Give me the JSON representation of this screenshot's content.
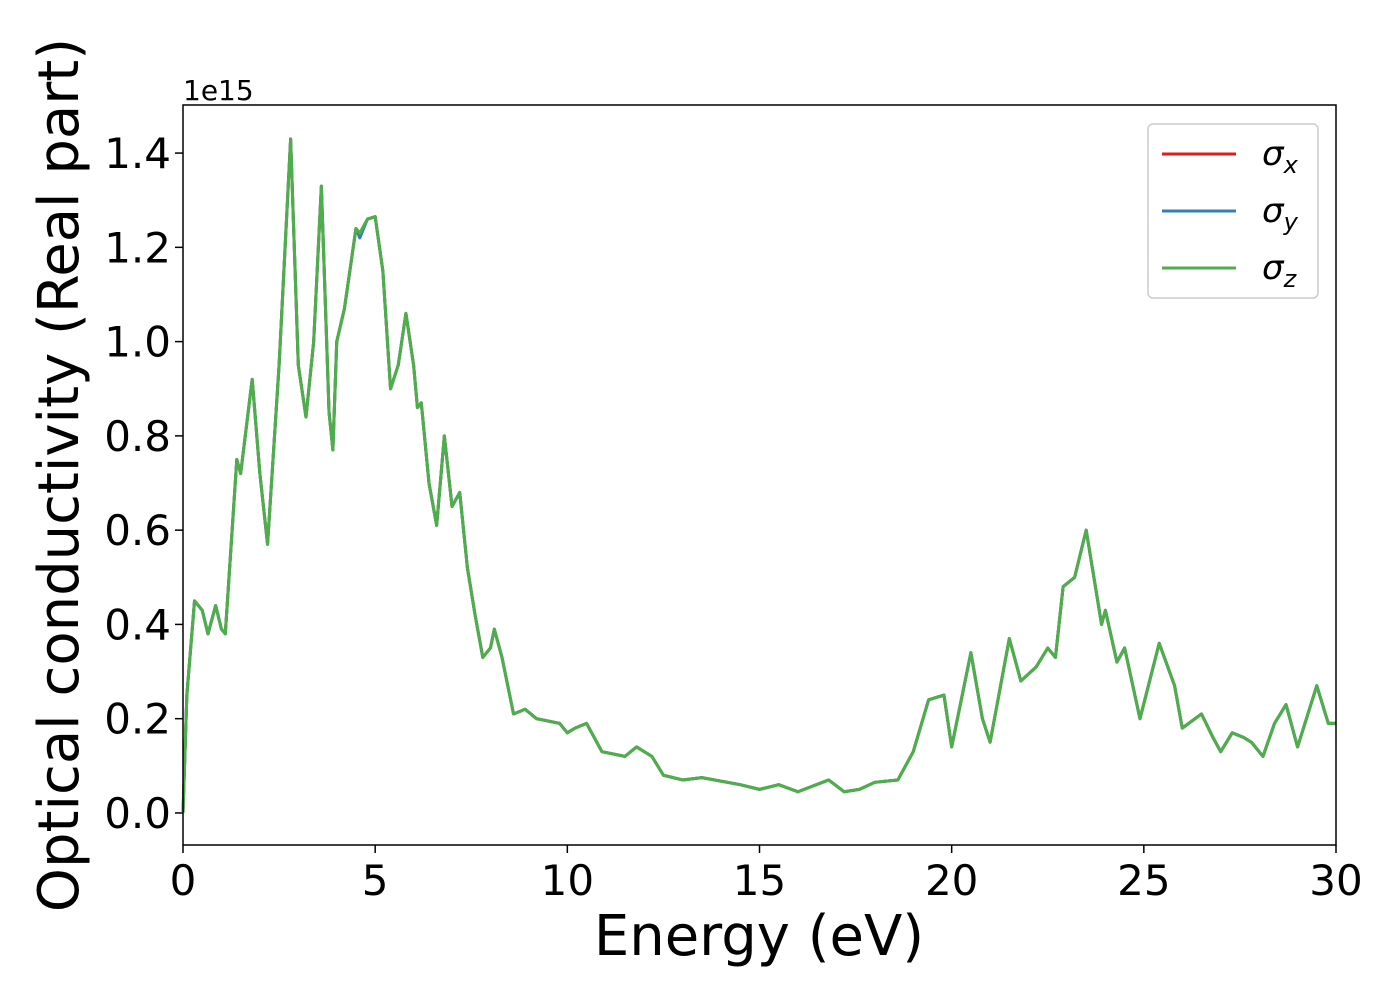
{
  "chart_data": {
    "type": "line",
    "xlabel": "Energy (eV)",
    "ylabel": "Optical conductivity (Real part)",
    "offset_label": "1e15",
    "xlim": [
      0,
      30
    ],
    "xticks": [
      0,
      5,
      10,
      15,
      20,
      25,
      30
    ],
    "ylim": [
      -0.068,
      1.502
    ],
    "yticks": [
      {
        "value": 0,
        "label": "0.0"
      },
      {
        "value": 0.2,
        "label": "0.2"
      },
      {
        "value": 0.4,
        "label": "0.4"
      },
      {
        "value": 0.6,
        "label": "0.6"
      },
      {
        "value": 0.8,
        "label": "0.8"
      },
      {
        "value": 1.0,
        "label": "1.0"
      },
      {
        "value": 1.2,
        "label": "1.2"
      },
      {
        "value": 1.4,
        "label": "1.4"
      }
    ],
    "legend": "upper right",
    "x": [
      0,
      0.1,
      0.3,
      0.5,
      0.65,
      0.85,
      1.0,
      1.1,
      1.4,
      1.5,
      1.8,
      2.0,
      2.2,
      2.5,
      2.8,
      3.0,
      3.2,
      3.4,
      3.6,
      3.8,
      3.9,
      4.0,
      4.2,
      4.5,
      4.6,
      4.8,
      5.0,
      5.2,
      5.4,
      5.6,
      5.8,
      6.0,
      6.1,
      6.2,
      6.4,
      6.6,
      6.8,
      7.0,
      7.2,
      7.4,
      7.6,
      7.8,
      8.0,
      8.1,
      8.3,
      8.6,
      8.9,
      9.2,
      9.8,
      10.0,
      10.2,
      10.5,
      10.9,
      11.5,
      11.8,
      12.2,
      12.5,
      13.0,
      13.5,
      14.5,
      15.0,
      15.5,
      16.0,
      16.8,
      17.2,
      17.6,
      18.0,
      18.6,
      19.0,
      19.4,
      19.8,
      20.0,
      20.5,
      20.8,
      21.0,
      21.5,
      21.8,
      22.2,
      22.5,
      22.7,
      22.9,
      23.2,
      23.5,
      23.9,
      24.0,
      24.3,
      24.5,
      24.9,
      25.4,
      25.8,
      26.0,
      26.5,
      26.8,
      27.0,
      27.3,
      27.6,
      27.8,
      28.1,
      28.4,
      28.7,
      29.0,
      29.5,
      29.8,
      30.0
    ],
    "series": [
      {
        "name": "σx",
        "color": "#e41a1c",
        "values": [
          0,
          0.25,
          0.45,
          0.43,
          0.38,
          0.44,
          0.39,
          0.38,
          0.75,
          0.72,
          0.92,
          0.72,
          0.57,
          0.95,
          1.43,
          0.95,
          0.84,
          1.0,
          1.33,
          0.85,
          0.77,
          1.0,
          1.07,
          1.24,
          1.23,
          1.26,
          1.265,
          1.15,
          0.9,
          0.95,
          1.06,
          0.95,
          0.86,
          0.87,
          0.7,
          0.61,
          0.8,
          0.65,
          0.68,
          0.52,
          0.42,
          0.33,
          0.35,
          0.39,
          0.33,
          0.21,
          0.22,
          0.2,
          0.19,
          0.17,
          0.18,
          0.19,
          0.13,
          0.12,
          0.14,
          0.12,
          0.08,
          0.07,
          0.075,
          0.06,
          0.05,
          0.06,
          0.045,
          0.07,
          0.045,
          0.05,
          0.065,
          0.07,
          0.13,
          0.24,
          0.25,
          0.14,
          0.34,
          0.2,
          0.15,
          0.37,
          0.28,
          0.31,
          0.35,
          0.33,
          0.48,
          0.5,
          0.6,
          0.4,
          0.43,
          0.32,
          0.35,
          0.2,
          0.36,
          0.27,
          0.18,
          0.21,
          0.16,
          0.13,
          0.17,
          0.16,
          0.15,
          0.12,
          0.19,
          0.23,
          0.14,
          0.27,
          0.19,
          0.19
        ]
      },
      {
        "name": "σy",
        "color": "#377eb8",
        "values": [
          0,
          0.25,
          0.45,
          0.43,
          0.38,
          0.44,
          0.39,
          0.38,
          0.75,
          0.72,
          0.92,
          0.72,
          0.57,
          0.95,
          1.43,
          0.95,
          0.84,
          1.0,
          1.33,
          0.85,
          0.77,
          1.0,
          1.07,
          1.24,
          1.22,
          1.26,
          1.265,
          1.15,
          0.9,
          0.95,
          1.06,
          0.95,
          0.86,
          0.87,
          0.7,
          0.61,
          0.8,
          0.65,
          0.68,
          0.52,
          0.42,
          0.33,
          0.35,
          0.39,
          0.33,
          0.21,
          0.22,
          0.2,
          0.19,
          0.17,
          0.18,
          0.19,
          0.13,
          0.12,
          0.14,
          0.12,
          0.08,
          0.07,
          0.075,
          0.06,
          0.05,
          0.06,
          0.045,
          0.07,
          0.045,
          0.05,
          0.065,
          0.07,
          0.13,
          0.24,
          0.25,
          0.14,
          0.34,
          0.2,
          0.15,
          0.37,
          0.28,
          0.31,
          0.35,
          0.33,
          0.48,
          0.5,
          0.6,
          0.4,
          0.43,
          0.32,
          0.35,
          0.2,
          0.36,
          0.27,
          0.18,
          0.21,
          0.16,
          0.13,
          0.17,
          0.16,
          0.15,
          0.12,
          0.19,
          0.23,
          0.14,
          0.27,
          0.19,
          0.19
        ]
      },
      {
        "name": "σz",
        "color": "#4daf4a",
        "values": [
          0,
          0.25,
          0.45,
          0.43,
          0.38,
          0.44,
          0.39,
          0.38,
          0.75,
          0.72,
          0.92,
          0.72,
          0.57,
          0.95,
          1.43,
          0.95,
          0.84,
          1.0,
          1.33,
          0.85,
          0.77,
          1.0,
          1.07,
          1.24,
          1.23,
          1.26,
          1.265,
          1.15,
          0.9,
          0.95,
          1.06,
          0.95,
          0.86,
          0.87,
          0.7,
          0.61,
          0.8,
          0.65,
          0.68,
          0.52,
          0.42,
          0.33,
          0.35,
          0.39,
          0.33,
          0.21,
          0.22,
          0.2,
          0.19,
          0.17,
          0.18,
          0.19,
          0.13,
          0.12,
          0.14,
          0.12,
          0.08,
          0.07,
          0.075,
          0.06,
          0.05,
          0.06,
          0.045,
          0.07,
          0.045,
          0.05,
          0.065,
          0.07,
          0.13,
          0.24,
          0.25,
          0.14,
          0.34,
          0.2,
          0.15,
          0.37,
          0.28,
          0.31,
          0.35,
          0.33,
          0.48,
          0.5,
          0.6,
          0.4,
          0.43,
          0.32,
          0.35,
          0.2,
          0.36,
          0.27,
          0.18,
          0.21,
          0.16,
          0.13,
          0.17,
          0.16,
          0.15,
          0.12,
          0.19,
          0.23,
          0.14,
          0.27,
          0.19,
          0.19
        ]
      }
    ]
  }
}
